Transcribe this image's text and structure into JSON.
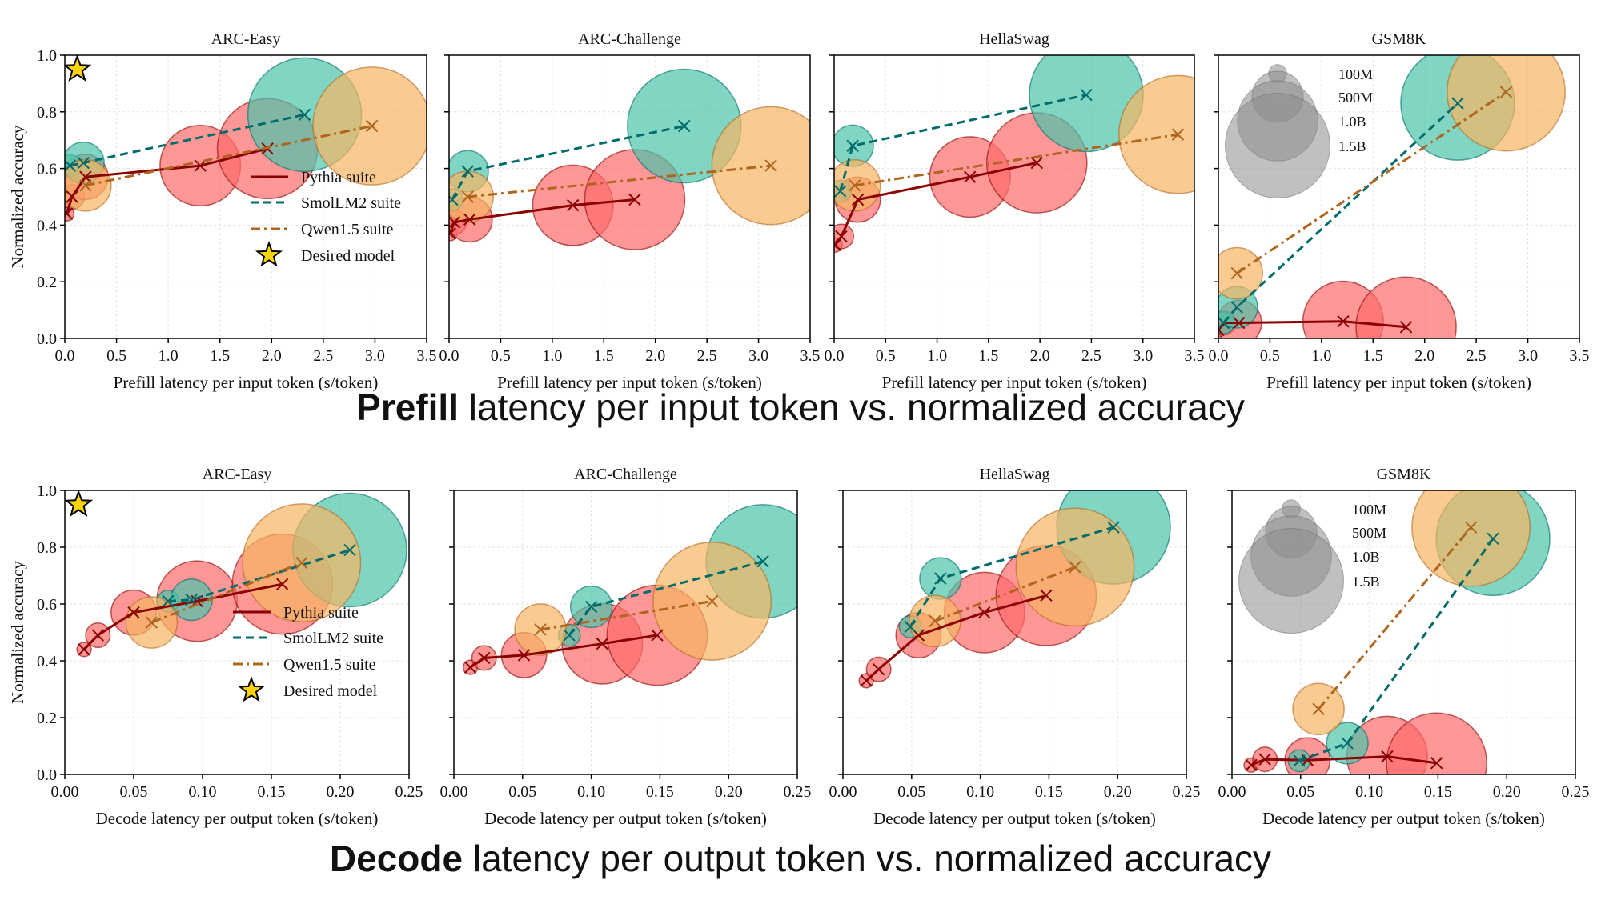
{
  "captions": {
    "prefill_bold": "Prefill",
    "prefill_rest": " latency per input token vs. normalized accuracy",
    "decode_bold": "Decode",
    "decode_rest": " latency per output token vs. normalized accuracy"
  },
  "legend": {
    "series": [
      "Pythia suite",
      "SmolLM2 suite",
      "Qwen1.5 suite"
    ],
    "desired": "Desired model",
    "sizes": [
      {
        "label": "100M",
        "params_b": 0.1
      },
      {
        "label": "500M",
        "params_b": 0.5
      },
      {
        "label": "1.0B",
        "params_b": 1.0
      },
      {
        "label": "1.5B",
        "params_b": 1.5
      }
    ]
  },
  "colors": {
    "pythia_fill": "#ff6b6b",
    "pythia_line": "#8b0000",
    "smol_fill": "#4cc3a9",
    "smol_line": "#006b6b",
    "qwen_fill": "#f7b562",
    "qwen_line": "#b0651e",
    "star": "#ffd400",
    "size_legend": "#8c8c8c"
  },
  "chart_data": [
    {
      "type": "scatter",
      "title": "ARC-Easy",
      "xlabel": "Prefill latency per input token (s/token)",
      "ylabel": "Normalized accuracy",
      "xlim": [
        0,
        3.5
      ],
      "ylim": [
        0,
        1
      ],
      "xticks": [
        "0.0",
        "0.5",
        "1.0",
        "1.5",
        "2.0",
        "2.5",
        "3.0",
        "3.5"
      ],
      "yticks": [
        "0.0",
        "0.2",
        "0.4",
        "0.6",
        "0.8",
        "1.0"
      ],
      "grid": true,
      "legend": "lower-right",
      "desired": {
        "x": 0.12,
        "y": 0.95
      },
      "series": [
        {
          "name": "Pythia suite",
          "params_b": [
            0.07,
            0.16,
            0.41,
            1.0,
            1.4
          ],
          "x": [
            0.02,
            0.07,
            0.2,
            1.31,
            1.96
          ],
          "y": [
            0.44,
            0.5,
            0.57,
            0.61,
            0.67
          ]
        },
        {
          "name": "SmolLM2 suite",
          "params_b": [
            0.135,
            0.36,
            1.7
          ],
          "x": [
            0.05,
            0.18,
            2.32
          ],
          "y": [
            0.61,
            0.62,
            0.79
          ]
        },
        {
          "name": "Qwen1.5 suite",
          "params_b": [
            0.5,
            1.8
          ],
          "x": [
            0.2,
            2.97
          ],
          "y": [
            0.54,
            0.75
          ]
        }
      ]
    },
    {
      "type": "scatter",
      "title": "ARC-Challenge",
      "xlabel": "Prefill latency per input token (s/token)",
      "xlim": [
        0,
        3.5
      ],
      "ylim": [
        0,
        1
      ],
      "xticks": [
        "0.0",
        "0.5",
        "1.0",
        "1.5",
        "2.0",
        "2.5",
        "3.0",
        "3.5"
      ],
      "grid": true,
      "series": [
        {
          "name": "Pythia suite",
          "params_b": [
            0.07,
            0.16,
            0.41,
            1.0,
            1.4
          ],
          "x": [
            0.01,
            0.05,
            0.2,
            1.2,
            1.8
          ],
          "y": [
            0.37,
            0.41,
            0.42,
            0.47,
            0.49
          ]
        },
        {
          "name": "SmolLM2 suite",
          "params_b": [
            0.135,
            0.36,
            1.7
          ],
          "x": [
            0.03,
            0.18,
            2.28
          ],
          "y": [
            0.49,
            0.59,
            0.75
          ]
        },
        {
          "name": "Qwen1.5 suite",
          "params_b": [
            0.5,
            1.8
          ],
          "x": [
            0.18,
            3.12
          ],
          "y": [
            0.5,
            0.61
          ]
        }
      ]
    },
    {
      "type": "scatter",
      "title": "HellaSwag",
      "xlabel": "Prefill latency per input token (s/token)",
      "xlim": [
        0,
        3.5
      ],
      "ylim": [
        0,
        1
      ],
      "xticks": [
        "0.0",
        "0.5",
        "1.0",
        "1.5",
        "2.0",
        "2.5",
        "3.0",
        "3.5"
      ],
      "grid": true,
      "series": [
        {
          "name": "Pythia suite",
          "params_b": [
            0.07,
            0.16,
            0.41,
            1.0,
            1.4
          ],
          "x": [
            0.01,
            0.07,
            0.23,
            1.32,
            1.97
          ],
          "y": [
            0.33,
            0.36,
            0.49,
            0.57,
            0.62
          ]
        },
        {
          "name": "SmolLM2 suite",
          "params_b": [
            0.135,
            0.36,
            1.7
          ],
          "x": [
            0.06,
            0.18,
            2.45
          ],
          "y": [
            0.52,
            0.68,
            0.86
          ]
        },
        {
          "name": "Qwen1.5 suite",
          "params_b": [
            0.5,
            1.8
          ],
          "x": [
            0.2,
            3.34
          ],
          "y": [
            0.54,
            0.72
          ]
        }
      ]
    },
    {
      "type": "scatter",
      "title": "GSM8K",
      "xlabel": "Prefill latency per input token (s/token)",
      "xlim": [
        0,
        3.5
      ],
      "ylim": [
        0,
        1
      ],
      "xticks": [
        "0.0",
        "0.5",
        "1.0",
        "1.5",
        "2.0",
        "2.5",
        "3.0",
        "3.5"
      ],
      "grid": true,
      "size_legend": "top-left",
      "series": [
        {
          "name": "Pythia suite",
          "params_b": [
            0.07,
            0.16,
            0.41,
            1.0,
            1.4
          ],
          "x": [
            0.0,
            0.05,
            0.2,
            1.21,
            1.82
          ],
          "y": [
            0.03,
            0.055,
            0.055,
            0.06,
            0.04
          ]
        },
        {
          "name": "SmolLM2 suite",
          "params_b": [
            0.135,
            0.36,
            1.7
          ],
          "x": [
            0.05,
            0.18,
            2.32
          ],
          "y": [
            0.055,
            0.11,
            0.83
          ]
        },
        {
          "name": "Qwen1.5 suite",
          "params_b": [
            0.5,
            1.8
          ],
          "x": [
            0.18,
            2.79
          ],
          "y": [
            0.23,
            0.87
          ]
        }
      ]
    },
    {
      "type": "scatter",
      "title": "ARC-Easy",
      "xlabel": "Decode latency per output token (s/token)",
      "ylabel": "Normalized accuracy",
      "xlim": [
        0,
        0.25
      ],
      "ylim": [
        0,
        1
      ],
      "xticks": [
        "0.00",
        "0.05",
        "0.10",
        "0.15",
        "0.20",
        "0.25"
      ],
      "yticks": [
        "0.0",
        "0.2",
        "0.4",
        "0.6",
        "0.8",
        "1.0"
      ],
      "grid": true,
      "legend": "lower-right",
      "desired": {
        "x": 0.01,
        "y": 0.95
      },
      "series": [
        {
          "name": "Pythia suite",
          "params_b": [
            0.07,
            0.16,
            0.41,
            1.0,
            1.4
          ],
          "x": [
            0.014,
            0.024,
            0.05,
            0.096,
            0.158
          ],
          "y": [
            0.44,
            0.49,
            0.57,
            0.61,
            0.67
          ]
        },
        {
          "name": "SmolLM2 suite",
          "params_b": [
            0.135,
            0.36,
            1.7
          ],
          "x": [
            0.075,
            0.092,
            0.207
          ],
          "y": [
            0.61,
            0.615,
            0.79
          ]
        },
        {
          "name": "Qwen1.5 suite",
          "params_b": [
            0.5,
            1.8
          ],
          "x": [
            0.063,
            0.172
          ],
          "y": [
            0.535,
            0.745
          ]
        }
      ]
    },
    {
      "type": "scatter",
      "title": "ARC-Challenge",
      "xlabel": "Decode latency per output token (s/token)",
      "xlim": [
        0,
        0.25
      ],
      "ylim": [
        0,
        1
      ],
      "xticks": [
        "0.00",
        "0.05",
        "0.10",
        "0.15",
        "0.20",
        "0.25"
      ],
      "grid": true,
      "series": [
        {
          "name": "Pythia suite",
          "params_b": [
            0.07,
            0.16,
            0.41,
            1.0,
            1.4
          ],
          "x": [
            0.012,
            0.022,
            0.051,
            0.108,
            0.148
          ],
          "y": [
            0.377,
            0.41,
            0.42,
            0.46,
            0.49
          ]
        },
        {
          "name": "SmolLM2 suite",
          "params_b": [
            0.135,
            0.36,
            1.7
          ],
          "x": [
            0.084,
            0.1,
            0.225
          ],
          "y": [
            0.49,
            0.59,
            0.75
          ]
        },
        {
          "name": "Qwen1.5 suite",
          "params_b": [
            0.5,
            1.8
          ],
          "x": [
            0.063,
            0.188
          ],
          "y": [
            0.51,
            0.61
          ]
        }
      ]
    },
    {
      "type": "scatter",
      "title": "HellaSwag",
      "xlabel": "Decode latency per output token (s/token)",
      "xlim": [
        0,
        0.25
      ],
      "ylim": [
        0,
        1
      ],
      "xticks": [
        "0.00",
        "0.05",
        "0.10",
        "0.15",
        "0.20",
        "0.25"
      ],
      "grid": true,
      "series": [
        {
          "name": "Pythia suite",
          "params_b": [
            0.07,
            0.16,
            0.41,
            1.0,
            1.4
          ],
          "x": [
            0.017,
            0.026,
            0.055,
            0.103,
            0.148
          ],
          "y": [
            0.33,
            0.37,
            0.49,
            0.57,
            0.63
          ]
        },
        {
          "name": "SmolLM2 suite",
          "params_b": [
            0.135,
            0.36,
            1.7
          ],
          "x": [
            0.049,
            0.071,
            0.197
          ],
          "y": [
            0.52,
            0.69,
            0.87
          ]
        },
        {
          "name": "Qwen1.5 suite",
          "params_b": [
            0.5,
            1.8
          ],
          "x": [
            0.067,
            0.169
          ],
          "y": [
            0.54,
            0.73
          ]
        }
      ]
    },
    {
      "type": "scatter",
      "title": "GSM8K",
      "xlabel": "Decode latency per output token (s/token)",
      "xlim": [
        0,
        0.25
      ],
      "ylim": [
        0,
        1
      ],
      "xticks": [
        "0.00",
        "0.05",
        "0.10",
        "0.15",
        "0.20",
        "0.25"
      ],
      "grid": true,
      "size_legend": "top-left",
      "series": [
        {
          "name": "Pythia suite",
          "params_b": [
            0.07,
            0.16,
            0.41,
            1.0,
            1.4
          ],
          "x": [
            0.014,
            0.024,
            0.055,
            0.113,
            0.149
          ],
          "y": [
            0.033,
            0.053,
            0.05,
            0.063,
            0.04
          ]
        },
        {
          "name": "SmolLM2 suite",
          "params_b": [
            0.135,
            0.36,
            1.7
          ],
          "x": [
            0.049,
            0.084,
            0.19
          ],
          "y": [
            0.048,
            0.11,
            0.83
          ]
        },
        {
          "name": "Qwen1.5 suite",
          "params_b": [
            0.5,
            1.8
          ],
          "x": [
            0.063,
            0.174
          ],
          "y": [
            0.23,
            0.87
          ]
        }
      ]
    }
  ]
}
